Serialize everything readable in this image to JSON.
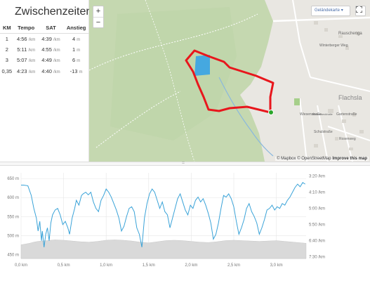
{
  "splits": {
    "title": "Zwischenzeiten",
    "headers": [
      "KM",
      "Tempo",
      "SAT",
      "Anstieg"
    ],
    "pace_unit": "/km",
    "elev_unit": "m",
    "rows": [
      {
        "km": "1",
        "tempo": "4:56",
        "sat": "4:39",
        "anstieg": "4"
      },
      {
        "km": "2",
        "tempo": "5:11",
        "sat": "4:55",
        "anstieg": "1"
      },
      {
        "km": "3",
        "tempo": "5:07",
        "sat": "4:49",
        "anstieg": "6"
      },
      {
        "km": "0,35",
        "tempo": "4:23",
        "sat": "4:40",
        "anstieg": "-13"
      }
    ]
  },
  "map": {
    "zoom_in": "+",
    "zoom_out": "−",
    "layer_select": "Geländekarte",
    "layer_caret": "▾",
    "fullscreen_icon": "fullscreen-icon",
    "attribution": {
      "mapbox": "© Mapbox",
      "osm": "© OpenStreetMap",
      "improve": "Improve this map"
    },
    "place_labels": {
      "flachsland": "Flachsla",
      "rauschengasse": "Rauschenga",
      "winterberger": "Winterberger Weg",
      "wiesenstrasse": "Wiesenstraße",
      "schulstrasse": "Schulstraße",
      "gartenstrasse": "Gartenstraße",
      "rosenweg": "Rosenweg",
      "mehrzweckhalle": "Mehrzweckhalle"
    },
    "colors": {
      "route": "#e8161c",
      "forest": "#c7d9b3",
      "water": "#45a8e0",
      "end_marker": "#2aa52a"
    }
  },
  "divider_handle": "=",
  "chart_data": {
    "type": "line",
    "x_ticks": [
      "0,0 km",
      "0,5 km",
      "1,0 km",
      "1,5 km",
      "2,0 km",
      "2,5 km",
      "3,0 km"
    ],
    "x_tick_values": [
      0,
      0.5,
      1.0,
      1.5,
      2.0,
      2.5,
      3.0
    ],
    "xlim": [
      0,
      3.35
    ],
    "y_left_ticks": [
      "650 m",
      "600 m",
      "550 m",
      "500 m",
      "450 m"
    ],
    "y_left_values": [
      650,
      600,
      550,
      500,
      450
    ],
    "y_left_lim": [
      440,
      665
    ],
    "y_right_ticks": [
      "3:20 /km",
      "4:10 /km",
      "5:00 /km",
      "5:50 /km",
      "6:40 /km",
      "7:30 /km"
    ],
    "y_right_values": [
      200,
      250,
      300,
      350,
      400,
      450
    ],
    "y_right_lim": [
      190,
      455
    ],
    "colors": {
      "pace": "#3aa3d8",
      "elevation_fill": "#d9d9d9",
      "grid": "#e6e6e6"
    },
    "series": [
      {
        "kind": "pace-line",
        "axis": "right",
        "x": [
          0.0,
          0.03,
          0.08,
          0.12,
          0.15,
          0.18,
          0.2,
          0.22,
          0.24,
          0.25,
          0.27,
          0.29,
          0.31,
          0.33,
          0.35,
          0.37,
          0.4,
          0.43,
          0.46,
          0.49,
          0.52,
          0.55,
          0.57,
          0.6,
          0.63,
          0.65,
          0.68,
          0.71,
          0.73,
          0.76,
          0.79,
          0.82,
          0.85,
          0.88,
          0.91,
          0.94,
          0.97,
          1.0,
          1.03,
          1.06,
          1.09,
          1.12,
          1.15,
          1.18,
          1.21,
          1.24,
          1.27,
          1.3,
          1.33,
          1.36,
          1.39,
          1.42,
          1.45,
          1.48,
          1.51,
          1.54,
          1.57,
          1.6,
          1.63,
          1.66,
          1.69,
          1.72,
          1.75,
          1.78,
          1.81,
          1.84,
          1.87,
          1.9,
          1.93,
          1.96,
          1.99,
          2.02,
          2.05,
          2.08,
          2.11,
          2.14,
          2.17,
          2.2,
          2.23,
          2.26,
          2.29,
          2.32,
          2.35,
          2.38,
          2.41,
          2.44,
          2.47,
          2.5,
          2.53,
          2.56,
          2.59,
          2.62,
          2.65,
          2.68,
          2.71,
          2.74,
          2.77,
          2.8,
          2.83,
          2.86,
          2.89,
          2.92,
          2.95,
          2.98,
          3.01,
          3.04,
          3.07,
          3.1,
          3.13,
          3.16,
          3.19,
          3.22,
          3.25,
          3.28,
          3.31,
          3.34
        ],
        "y": [
          228,
          228,
          230,
          260,
          300,
          330,
          370,
          340,
          400,
          370,
          420,
          380,
          360,
          400,
          345,
          320,
          305,
          300,
          320,
          350,
          340,
          360,
          380,
          330,
          300,
          275,
          290,
          260,
          255,
          250,
          258,
          250,
          280,
          300,
          310,
          275,
          260,
          240,
          250,
          265,
          285,
          305,
          330,
          370,
          355,
          325,
          300,
          295,
          310,
          360,
          380,
          420,
          330,
          285,
          255,
          240,
          250,
          275,
          300,
          280,
          310,
          320,
          360,
          330,
          300,
          270,
          255,
          280,
          305,
          320,
          290,
          300,
          275,
          265,
          280,
          270,
          290,
          315,
          345,
          395,
          380,
          345,
          300,
          260,
          265,
          255,
          270,
          295,
          340,
          380,
          360,
          335,
          300,
          285,
          310,
          325,
          345,
          380,
          360,
          335,
          305,
          300,
          290,
          305,
          295,
          300,
          285,
          290,
          275,
          265,
          250,
          235,
          225,
          233,
          220,
          225
        ]
      },
      {
        "kind": "elevation-area",
        "axis": "left",
        "x": [
          0.0,
          0.05,
          0.1,
          0.15,
          0.2,
          0.25,
          0.3,
          0.4,
          0.5,
          0.6,
          0.7,
          0.8,
          0.9,
          1.0,
          1.1,
          1.2,
          1.3,
          1.4,
          1.5,
          1.6,
          1.7,
          1.8,
          1.9,
          2.0,
          2.1,
          2.2,
          2.3,
          2.4,
          2.5,
          2.6,
          2.7,
          2.8,
          2.9,
          3.0,
          3.1,
          3.2,
          3.3,
          3.35
        ],
        "y": [
          476,
          478,
          480,
          483,
          485,
          486,
          487,
          489,
          488,
          486,
          484,
          483,
          485,
          488,
          489,
          488,
          486,
          483,
          481,
          484,
          487,
          488,
          487,
          485,
          483,
          482,
          484,
          487,
          488,
          487,
          486,
          485,
          486,
          487,
          485,
          483,
          481,
          480
        ]
      }
    ]
  }
}
